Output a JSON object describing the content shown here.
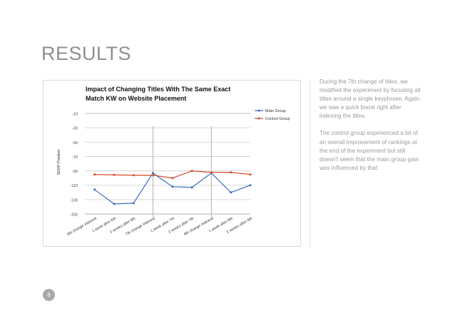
{
  "slide": {
    "title": "RESULTS",
    "page_number": "6",
    "paragraphs": [
      "During the 7th change of titles, we modified the experiment by focusing all titles around a single keyphrase.  Again we saw a quick boost right after indexing the titles.",
      "The control group experienced a bit of an overall improvement of rankings at the end of the experiment but still doesn't seem that the main group gain was influenced by that."
    ]
  },
  "chart_data": {
    "type": "line",
    "title_lines": [
      "Impact of Changing Titles With The Same Exact",
      "Match KW on Website Placement"
    ],
    "ylabel": "SERP Position",
    "xlabel": "",
    "ylim": [
      -150,
      -10
    ],
    "yticks": [
      "-10",
      "-30",
      "-50",
      "-70",
      "-90",
      "-110",
      "-130",
      "-150"
    ],
    "grid": true,
    "legend_position": "right",
    "categories": [
      "6th change Indexed",
      "1 week after 6th",
      "2 weeks after 6th",
      "7th change Indexed",
      "1 week after 7th",
      "2 weeks after 7th",
      "8th change Indexed",
      "1 week after 8th",
      "2 weeks after 8th"
    ],
    "series": [
      {
        "name": "Main Group",
        "color": "#3c6cc4",
        "values": [
          -116,
          -136,
          -135,
          -93,
          -112,
          -113,
          -93,
          -120,
          -110
        ]
      },
      {
        "name": "Control Group",
        "color": "#d64c2e",
        "values": [
          -95,
          -95.5,
          -96,
          -96,
          -100,
          -90,
          -92,
          -92,
          -95
        ]
      }
    ],
    "vertical_markers_at_categories": [
      3,
      6
    ]
  }
}
